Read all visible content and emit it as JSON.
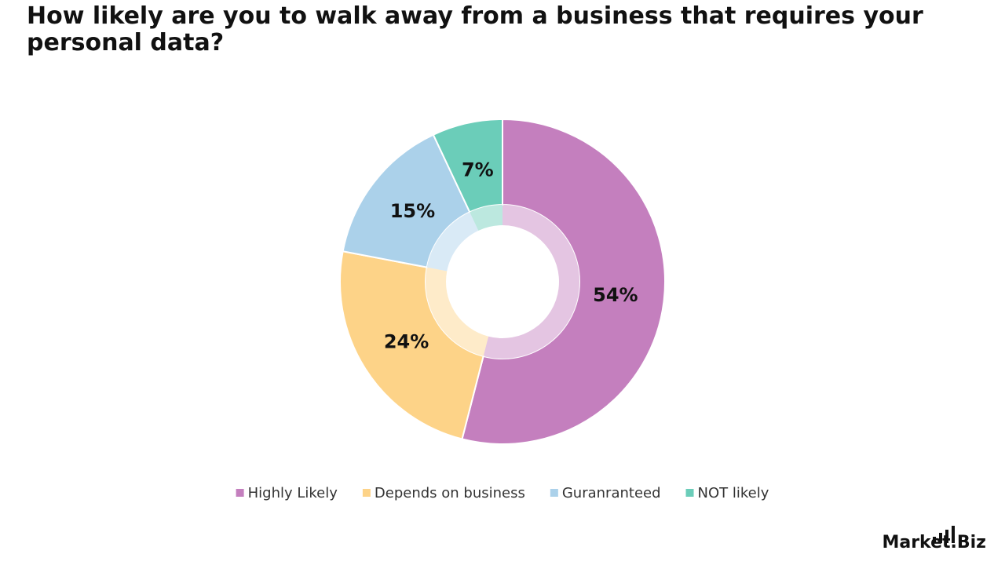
{
  "chart_data": {
    "type": "donut",
    "title": "How likely are you to walk away from a business that requires your personal data?",
    "categories": [
      "Highly Likely",
      "Depends on business",
      "Guranranteed",
      "NOT likely"
    ],
    "values": [
      54,
      24,
      15,
      7
    ],
    "value_labels": [
      "54%",
      "24%",
      "15%",
      "7%"
    ],
    "colors": [
      "#c47fbe",
      "#fdd388",
      "#abd1ea",
      "#6bcdb9"
    ],
    "legend": "bottom"
  },
  "logo": "Market.Biz"
}
